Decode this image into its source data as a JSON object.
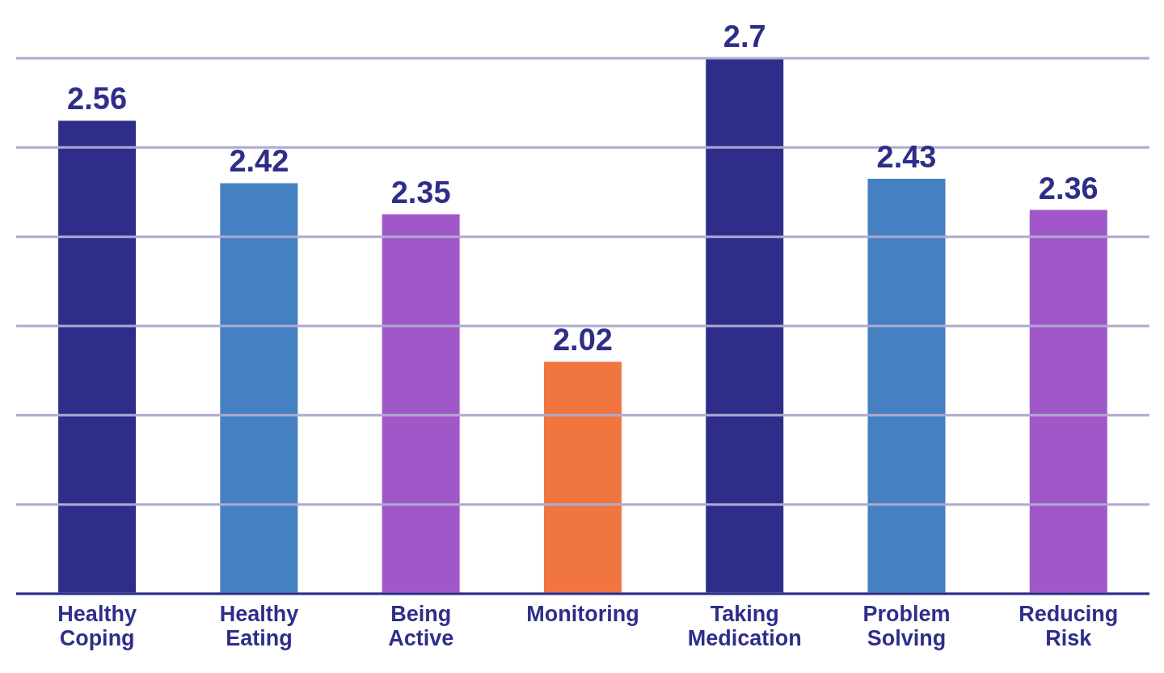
{
  "chart_data": {
    "type": "bar",
    "categories": [
      "Healthy Coping",
      "Healthy Eating",
      "Being Active",
      "Monitoring",
      "Taking Medication",
      "Problem Solving",
      "Reducing Risk"
    ],
    "values": [
      2.56,
      2.42,
      2.35,
      2.02,
      2.7,
      2.43,
      2.36
    ],
    "colors": [
      "#2e2e8a",
      "#4480c2",
      "#a057c8",
      "#f1753e",
      "#2e2e8a",
      "#4480c2",
      "#a057c8"
    ],
    "ylim": [
      1.5,
      2.7
    ],
    "yticks": [
      {
        "value": 1.5,
        "label": null
      },
      {
        "value": 1.7,
        "label": null
      },
      {
        "value": 1.9,
        "label": null
      },
      {
        "value": 2.1,
        "label": null
      },
      {
        "value": 2.3,
        "label": null
      },
      {
        "value": 2.5,
        "label": null
      },
      {
        "value": 2.7,
        "label": null
      }
    ],
    "grid": "y",
    "data_labels": true,
    "legend": false,
    "tick_labels": "x"
  }
}
